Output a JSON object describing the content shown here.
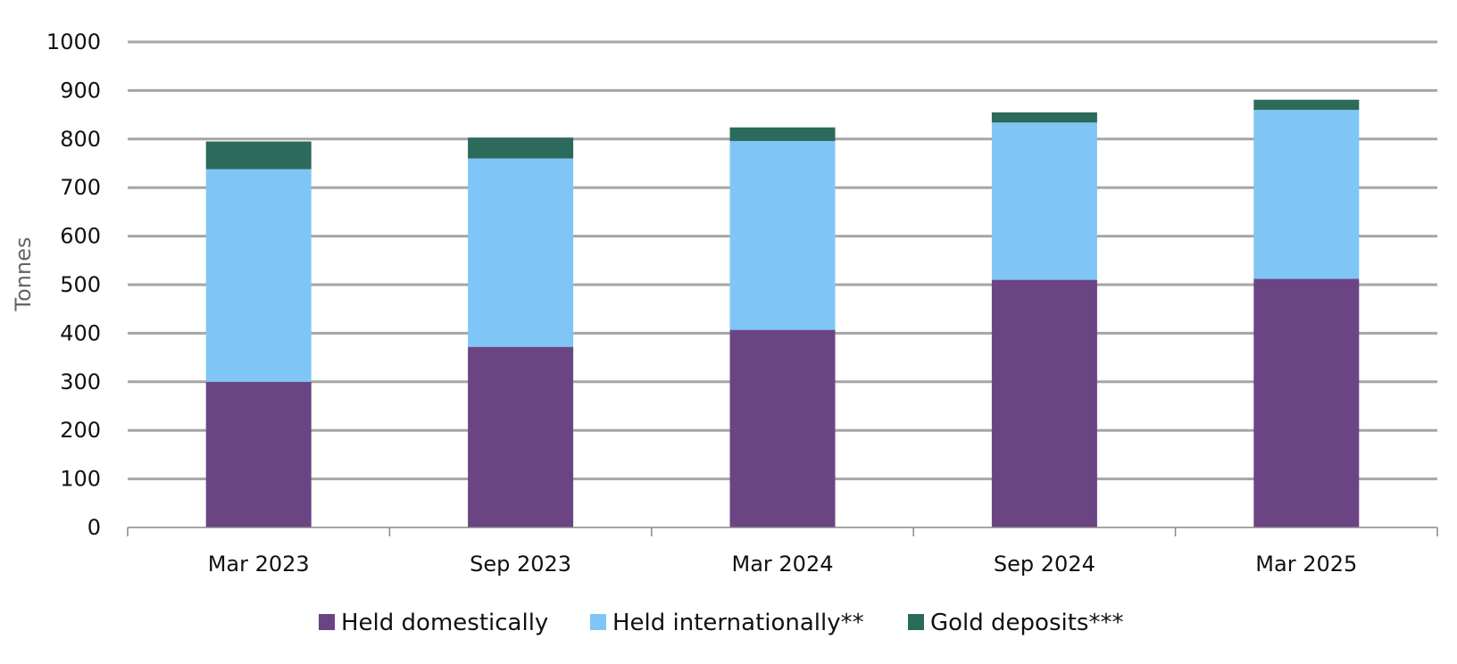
{
  "chart_data": {
    "type": "bar",
    "stacked": true,
    "title": "",
    "xlabel": "",
    "ylabel": "Tonnes",
    "ylim": [
      0,
      1000
    ],
    "yticks": [
      0,
      100,
      200,
      300,
      400,
      500,
      600,
      700,
      800,
      900,
      1000
    ],
    "grid": true,
    "legend_position": "bottom",
    "categories": [
      "Mar 2023",
      "Sep 2023",
      "Mar 2024",
      "Sep 2024",
      "Mar 2025"
    ],
    "series": [
      {
        "name": "Held domestically",
        "color": "#6b4583",
        "values": [
          300,
          372,
          407,
          510,
          512
        ]
      },
      {
        "name": "Held internationally**",
        "color": "#7fc6f6",
        "values": [
          438,
          388,
          389,
          324,
          348
        ]
      },
      {
        "name": "Gold deposits***",
        "color": "#2c6a5c",
        "values": [
          57,
          43,
          28,
          21,
          21
        ]
      }
    ]
  }
}
